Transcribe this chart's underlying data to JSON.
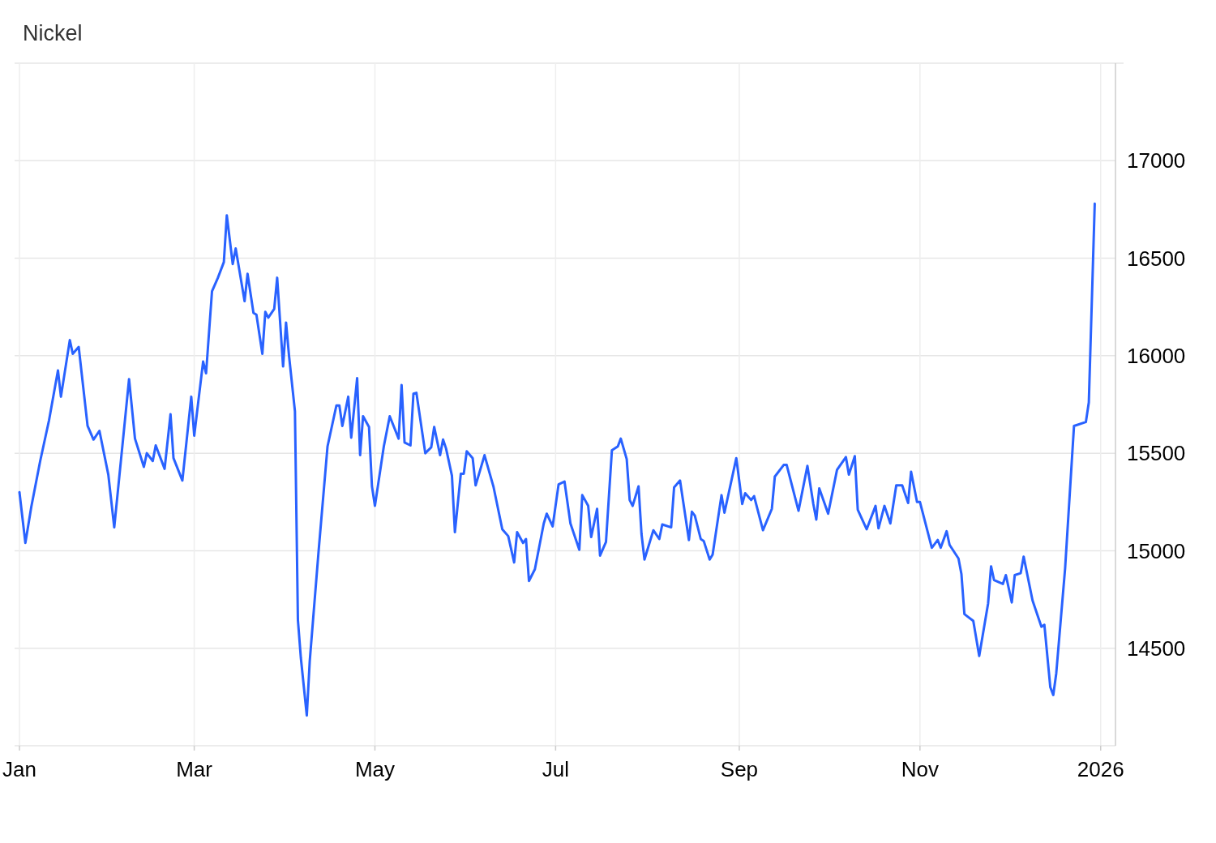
{
  "chart_data": {
    "type": "line",
    "title": "Nickel",
    "x": [
      "2025-01-01",
      "2025-01-03",
      "2025-01-05",
      "2025-01-08",
      "2025-01-11",
      "2025-01-14",
      "2025-01-15",
      "2025-01-18",
      "2025-01-19",
      "2025-01-21",
      "2025-01-24",
      "2025-01-26",
      "2025-01-28",
      "2025-01-31",
      "2025-02-02",
      "2025-02-07",
      "2025-02-09",
      "2025-02-12",
      "2025-02-13",
      "2025-02-15",
      "2025-02-16",
      "2025-02-19",
      "2025-02-21",
      "2025-02-22",
      "2025-02-25",
      "2025-02-28",
      "2025-03-01",
      "2025-03-04",
      "2025-03-05",
      "2025-03-07",
      "2025-03-09",
      "2025-03-11",
      "2025-03-12",
      "2025-03-14",
      "2025-03-15",
      "2025-03-18",
      "2025-03-19",
      "2025-03-21",
      "2025-03-22",
      "2025-03-24",
      "2025-03-25",
      "2025-03-26",
      "2025-03-28",
      "2025-03-29",
      "2025-03-31",
      "2025-04-01",
      "2025-04-02",
      "2025-04-04",
      "2025-04-05",
      "2025-04-06",
      "2025-04-08",
      "2025-04-09",
      "2025-04-12",
      "2025-04-15",
      "2025-04-18",
      "2025-04-19",
      "2025-04-20",
      "2025-04-22",
      "2025-04-23",
      "2025-04-25",
      "2025-04-26",
      "2025-04-27",
      "2025-04-29",
      "2025-04-30",
      "2025-05-01",
      "2025-05-04",
      "2025-05-06",
      "2025-05-09",
      "2025-05-10",
      "2025-05-11",
      "2025-05-13",
      "2025-05-14",
      "2025-05-15",
      "2025-05-18",
      "2025-05-20",
      "2025-05-21",
      "2025-05-23",
      "2025-05-24",
      "2025-05-25",
      "2025-05-27",
      "2025-05-28",
      "2025-05-30",
      "2025-05-31",
      "2025-06-01",
      "2025-06-03",
      "2025-06-04",
      "2025-06-07",
      "2025-06-10",
      "2025-06-13",
      "2025-06-15",
      "2025-06-17",
      "2025-06-18",
      "2025-06-20",
      "2025-06-21",
      "2025-06-22",
      "2025-06-24",
      "2025-06-27",
      "2025-06-28",
      "2025-06-30",
      "2025-07-02",
      "2025-07-04",
      "2025-07-06",
      "2025-07-09",
      "2025-07-10",
      "2025-07-12",
      "2025-07-13",
      "2025-07-15",
      "2025-07-16",
      "2025-07-18",
      "2025-07-20",
      "2025-07-22",
      "2025-07-23",
      "2025-07-25",
      "2025-07-26",
      "2025-07-27",
      "2025-07-29",
      "2025-07-30",
      "2025-07-31",
      "2025-08-03",
      "2025-08-05",
      "2025-08-06",
      "2025-08-09",
      "2025-08-10",
      "2025-08-12",
      "2025-08-15",
      "2025-08-16",
      "2025-08-17",
      "2025-08-19",
      "2025-08-20",
      "2025-08-22",
      "2025-08-23",
      "2025-08-26",
      "2025-08-27",
      "2025-08-31",
      "2025-09-02",
      "2025-09-03",
      "2025-09-05",
      "2025-09-06",
      "2025-09-09",
      "2025-09-12",
      "2025-09-13",
      "2025-09-16",
      "2025-09-17",
      "2025-09-21",
      "2025-09-24",
      "2025-09-26",
      "2025-09-27",
      "2025-09-28",
      "2025-10-01",
      "2025-10-04",
      "2025-10-07",
      "2025-10-08",
      "2025-10-10",
      "2025-10-11",
      "2025-10-14",
      "2025-10-17",
      "2025-10-18",
      "2025-10-20",
      "2025-10-22",
      "2025-10-24",
      "2025-10-26",
      "2025-10-28",
      "2025-10-29",
      "2025-10-31",
      "2025-11-01",
      "2025-11-05",
      "2025-11-07",
      "2025-11-08",
      "2025-11-10",
      "2025-11-11",
      "2025-11-14",
      "2025-11-15",
      "2025-11-16",
      "2025-11-19",
      "2025-11-21",
      "2025-11-24",
      "2025-11-25",
      "2025-11-26",
      "2025-11-29",
      "2025-11-30",
      "2025-12-02",
      "2025-12-03",
      "2025-12-05",
      "2025-12-06",
      "2025-12-09",
      "2025-12-12",
      "2025-12-13",
      "2025-12-15",
      "2025-12-16",
      "2025-12-17",
      "2025-12-20",
      "2025-12-23",
      "2025-12-27",
      "2025-12-28",
      "2025-12-30"
    ],
    "series": [
      {
        "color": "#2962ff",
        "values": [
          15300,
          15040,
          15225,
          15460,
          15670,
          15925,
          15790,
          16080,
          16010,
          16045,
          15640,
          15570,
          15615,
          15390,
          15120,
          15880,
          15575,
          15430,
          15500,
          15460,
          15540,
          15420,
          15700,
          15475,
          15360,
          15790,
          15590,
          15970,
          15910,
          16330,
          16400,
          16480,
          16720,
          16470,
          16550,
          16280,
          16420,
          16220,
          16210,
          16010,
          16225,
          16195,
          16240,
          16400,
          15945,
          16170,
          16000,
          15715,
          14645,
          14450,
          14155,
          14435,
          15000,
          15535,
          15745,
          15745,
          15640,
          15790,
          15580,
          15885,
          15490,
          15690,
          15635,
          15330,
          15230,
          15535,
          15690,
          15575,
          15850,
          15555,
          15540,
          15805,
          15810,
          15500,
          15530,
          15635,
          15490,
          15570,
          15525,
          15385,
          15095,
          15395,
          15395,
          15510,
          15475,
          15335,
          15490,
          15330,
          15110,
          15075,
          14940,
          15095,
          15040,
          15060,
          14845,
          14905,
          15140,
          15190,
          15125,
          15340,
          15355,
          15140,
          15005,
          15285,
          15230,
          15070,
          15215,
          14975,
          15045,
          15515,
          15535,
          15575,
          15470,
          15260,
          15230,
          15330,
          15085,
          14955,
          15105,
          15060,
          15135,
          15120,
          15325,
          15360,
          15055,
          15200,
          15180,
          15060,
          15050,
          14955,
          14980,
          15285,
          15195,
          15475,
          15240,
          15295,
          15260,
          15280,
          15105,
          15215,
          15380,
          15440,
          15440,
          15205,
          15435,
          15240,
          15160,
          15320,
          15190,
          15415,
          15480,
          15390,
          15485,
          15210,
          15110,
          15230,
          15115,
          15230,
          15140,
          15335,
          15335,
          15245,
          15405,
          15250,
          15250,
          15015,
          15055,
          15015,
          15100,
          15030,
          14960,
          14880,
          14675,
          14640,
          14460,
          14730,
          14920,
          14850,
          14830,
          14875,
          14735,
          14875,
          14885,
          14970,
          14745,
          14610,
          14620,
          14300,
          14260,
          14370,
          14910,
          15640,
          15660,
          15760,
          16780
        ]
      }
    ],
    "xlim": [
      "2025-01-01",
      "2026-01-06"
    ],
    "xticks": [
      {
        "value": "2025-01-01",
        "label": "Jan"
      },
      {
        "value": "2025-03-01",
        "label": "Mar"
      },
      {
        "value": "2025-05-01",
        "label": "May"
      },
      {
        "value": "2025-07-01",
        "label": "Jul"
      },
      {
        "value": "2025-09-01",
        "label": "Sep"
      },
      {
        "value": "2025-11-01",
        "label": "Nov"
      },
      {
        "value": "2026-01-01",
        "label": "2026"
      }
    ],
    "ylim": [
      14000,
      17500
    ],
    "yticks": [
      14500,
      15000,
      15500,
      16000,
      16500,
      17000
    ],
    "grid": true,
    "line_style": "solid",
    "marker": "none"
  }
}
